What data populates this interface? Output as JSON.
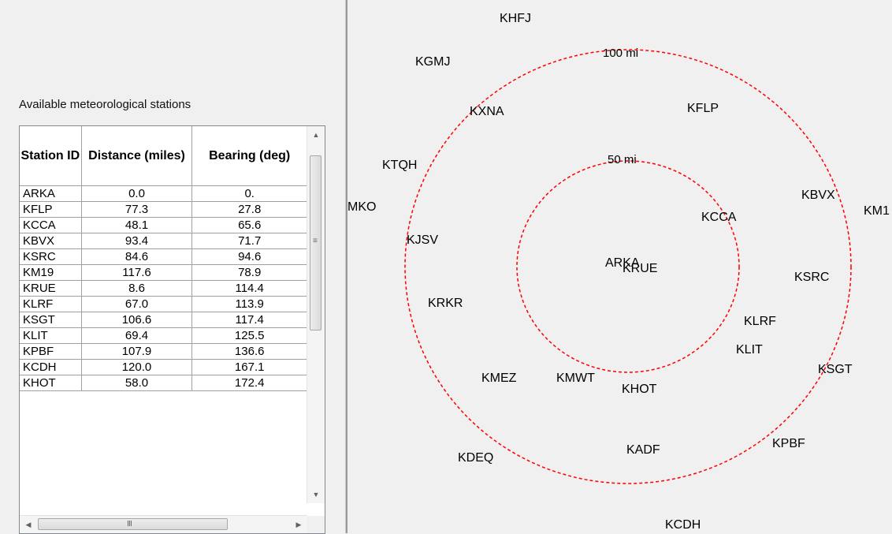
{
  "station_list": {
    "caption": "Available meteorological stations",
    "columns": [
      "Station ID",
      "Distance (miles)",
      "Bearing (deg)"
    ],
    "rows": [
      [
        "ARKA",
        "0.0",
        "0."
      ],
      [
        "KFLP",
        "77.3",
        "27.8"
      ],
      [
        "KCCA",
        "48.1",
        "65.6"
      ],
      [
        "KBVX",
        "93.4",
        "71.7"
      ],
      [
        "KSRC",
        "84.6",
        "94.6"
      ],
      [
        "KM19",
        "117.6",
        "78.9"
      ],
      [
        "KRUE",
        "8.6",
        "114.4"
      ],
      [
        "KLRF",
        "67.0",
        "113.9"
      ],
      [
        "KSGT",
        "106.6",
        "117.4"
      ],
      [
        "KLIT",
        "69.4",
        "125.5"
      ],
      [
        "KPBF",
        "107.9",
        "136.6"
      ],
      [
        "KCDH",
        "120.0",
        "167.1"
      ],
      [
        "KHOT",
        "58.0",
        "172.4"
      ]
    ]
  },
  "map": {
    "ring_color": "#ff0000",
    "rings": [
      {
        "label": "50 mi"
      },
      {
        "label": "100 mi"
      }
    ],
    "stations": [
      "KHFJ",
      "KGMJ",
      "KXNA",
      "KFLP",
      "KTQH",
      "MKO",
      "KBVX",
      "KM1",
      "KCCA",
      "KJSV",
      "ARKA",
      "KRUE",
      "KSRC",
      "KRKR",
      "KLRF",
      "KLIT",
      "KSGT",
      "KMEZ",
      "KMWT",
      "KHOT",
      "KPBF",
      "KADF",
      "KDEQ",
      "KCDH"
    ]
  }
}
